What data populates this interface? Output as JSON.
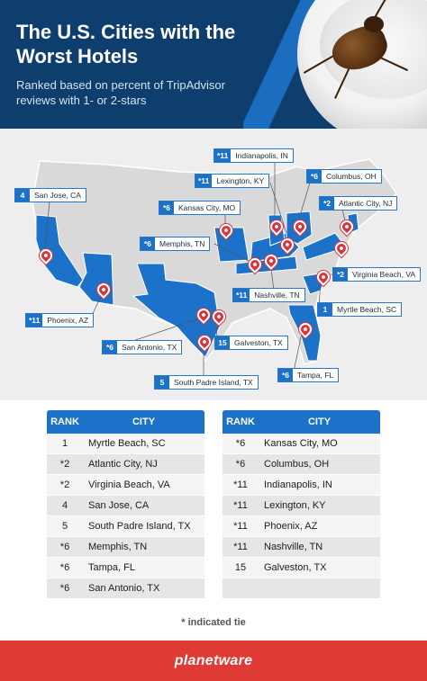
{
  "header": {
    "title": "The U.S. Cities with the Worst Hotels",
    "subtitle": "Ranked based on percent of TripAdvisor reviews with 1- or 2-stars"
  },
  "map_callouts": [
    {
      "rank": "*11",
      "city": "Indianapolis, IN"
    },
    {
      "rank": "*11",
      "city": "Lexington, KY"
    },
    {
      "rank": "*6",
      "city": "Columbus, OH"
    },
    {
      "rank": "4",
      "city": "San Jose, CA"
    },
    {
      "rank": "*2",
      "city": "Atlantic City, NJ"
    },
    {
      "rank": "*6",
      "city": "Kansas City, MO"
    },
    {
      "rank": "*6",
      "city": "Memphis, TN"
    },
    {
      "rank": "*2",
      "city": "Virginia Beach, VA"
    },
    {
      "rank": "*11",
      "city": "Nashville, TN"
    },
    {
      "rank": "1",
      "city": "Myrtle Beach, SC"
    },
    {
      "rank": "*11",
      "city": "Phoenix, AZ"
    },
    {
      "rank": "*6",
      "city": "San Antonio, TX"
    },
    {
      "rank": "15",
      "city": "Galveston, TX"
    },
    {
      "rank": "*6",
      "city": "Tampa, FL"
    },
    {
      "rank": "5",
      "city": "South Padre Island, TX"
    }
  ],
  "table_headers": {
    "rank": "RANK",
    "city": "CITY"
  },
  "table_left": [
    {
      "rank": "1",
      "city": "Myrtle Beach, SC"
    },
    {
      "rank": "*2",
      "city": "Atlantic City, NJ"
    },
    {
      "rank": "*2",
      "city": "Virginia Beach, VA"
    },
    {
      "rank": "4",
      "city": "San Jose, CA"
    },
    {
      "rank": "5",
      "city": "South Padre Island, TX"
    },
    {
      "rank": "*6",
      "city": "Memphis, TN"
    },
    {
      "rank": "*6",
      "city": "Tampa, FL"
    },
    {
      "rank": "*6",
      "city": "San Antonio, TX"
    }
  ],
  "table_right": [
    {
      "rank": "*6",
      "city": "Kansas City, MO"
    },
    {
      "rank": "*6",
      "city": "Columbus, OH"
    },
    {
      "rank": "*11",
      "city": "Indianapolis, IN"
    },
    {
      "rank": "*11",
      "city": "Lexington, KY"
    },
    {
      "rank": "*11",
      "city": "Phoenix, AZ"
    },
    {
      "rank": "*11",
      "city": "Nashville, TN"
    },
    {
      "rank": "15",
      "city": "Galveston, TX"
    },
    {
      "rank": "",
      "city": ""
    }
  ],
  "footnote": "* indicated tie",
  "footer": {
    "logo": "planetware"
  },
  "colors": {
    "navy": "#0d3e6e",
    "blue": "#1b72c8",
    "red": "#e03a35",
    "pin": "#d8343b"
  },
  "icons": [
    "cockroach-image",
    "teacup-image",
    "map-pin-icon",
    "hotel-icon"
  ]
}
